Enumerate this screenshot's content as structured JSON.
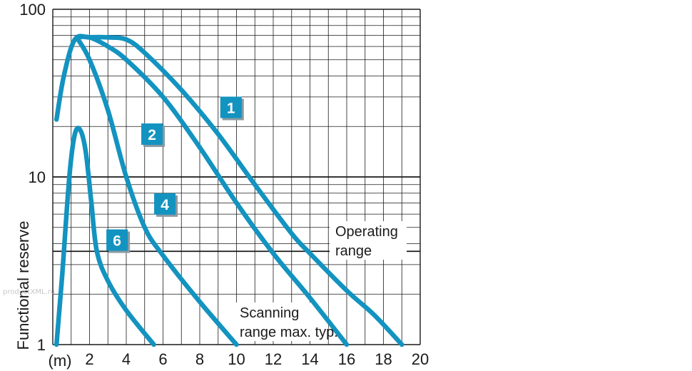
{
  "chart_data": {
    "type": "line",
    "ylabel": "Functional reserve",
    "x_unit_label": "(m)",
    "x_ticks": [
      2,
      4,
      6,
      8,
      10,
      12,
      14,
      16,
      18,
      20
    ],
    "y_ticks": [
      1,
      10,
      100
    ],
    "y_scale": "log",
    "xlim": [
      0,
      20
    ],
    "ylim": [
      1,
      100
    ],
    "grid": true,
    "threshold": {
      "value": 3.6,
      "labels": [
        "Operating",
        "range"
      ]
    },
    "annotation_bottom": [
      "Scanning",
      "range max. typ."
    ],
    "series": [
      {
        "name": "1",
        "x": [
          0.2,
          0.6,
          1.2,
          2.0,
          3.0,
          4.0,
          5.0,
          7.0,
          9.0,
          11.0,
          13.0,
          14.0,
          16.0,
          17.5,
          19.0
        ],
        "y": [
          22,
          40,
          66,
          68,
          68,
          66,
          55,
          33,
          18,
          9,
          4.6,
          3.5,
          2.1,
          1.5,
          1.0
        ]
      },
      {
        "name": "2",
        "x": [
          1.3,
          2.0,
          3.0,
          4.0,
          6.0,
          8.0,
          10.0,
          12.0,
          14.0,
          16.0
        ],
        "y": [
          68,
          68,
          60,
          50,
          30,
          15,
          7,
          3.5,
          1.9,
          1.0
        ]
      },
      {
        "name": "4",
        "x": [
          1.3,
          2.0,
          3.0,
          4.0,
          5.0,
          6.0,
          8.0,
          10.0
        ],
        "y": [
          68,
          50,
          25,
          10,
          5,
          3.4,
          1.8,
          1.0
        ]
      },
      {
        "name": "6",
        "x": [
          0.2,
          0.5,
          0.9,
          1.2,
          1.5,
          1.8,
          2.1,
          2.4,
          3.0,
          4.0,
          5.5
        ],
        "y": [
          1.0,
          2.5,
          10,
          18,
          19,
          14,
          7,
          3.6,
          2.4,
          1.6,
          1.0
        ]
      }
    ],
    "labels": [
      {
        "text": "1",
        "x": 9.7,
        "y": 26
      },
      {
        "text": "2",
        "x": 5.4,
        "y": 18
      },
      {
        "text": "4",
        "x": 6.1,
        "y": 6.9
      },
      {
        "text": "6",
        "x": 3.5,
        "y": 4.2
      }
    ],
    "colors": {
      "line": "#1393c0",
      "badge": "#1393c0",
      "grid": "#1a1a1a",
      "text": "#1a1a1a"
    }
  },
  "watermark": "productXML.ru"
}
